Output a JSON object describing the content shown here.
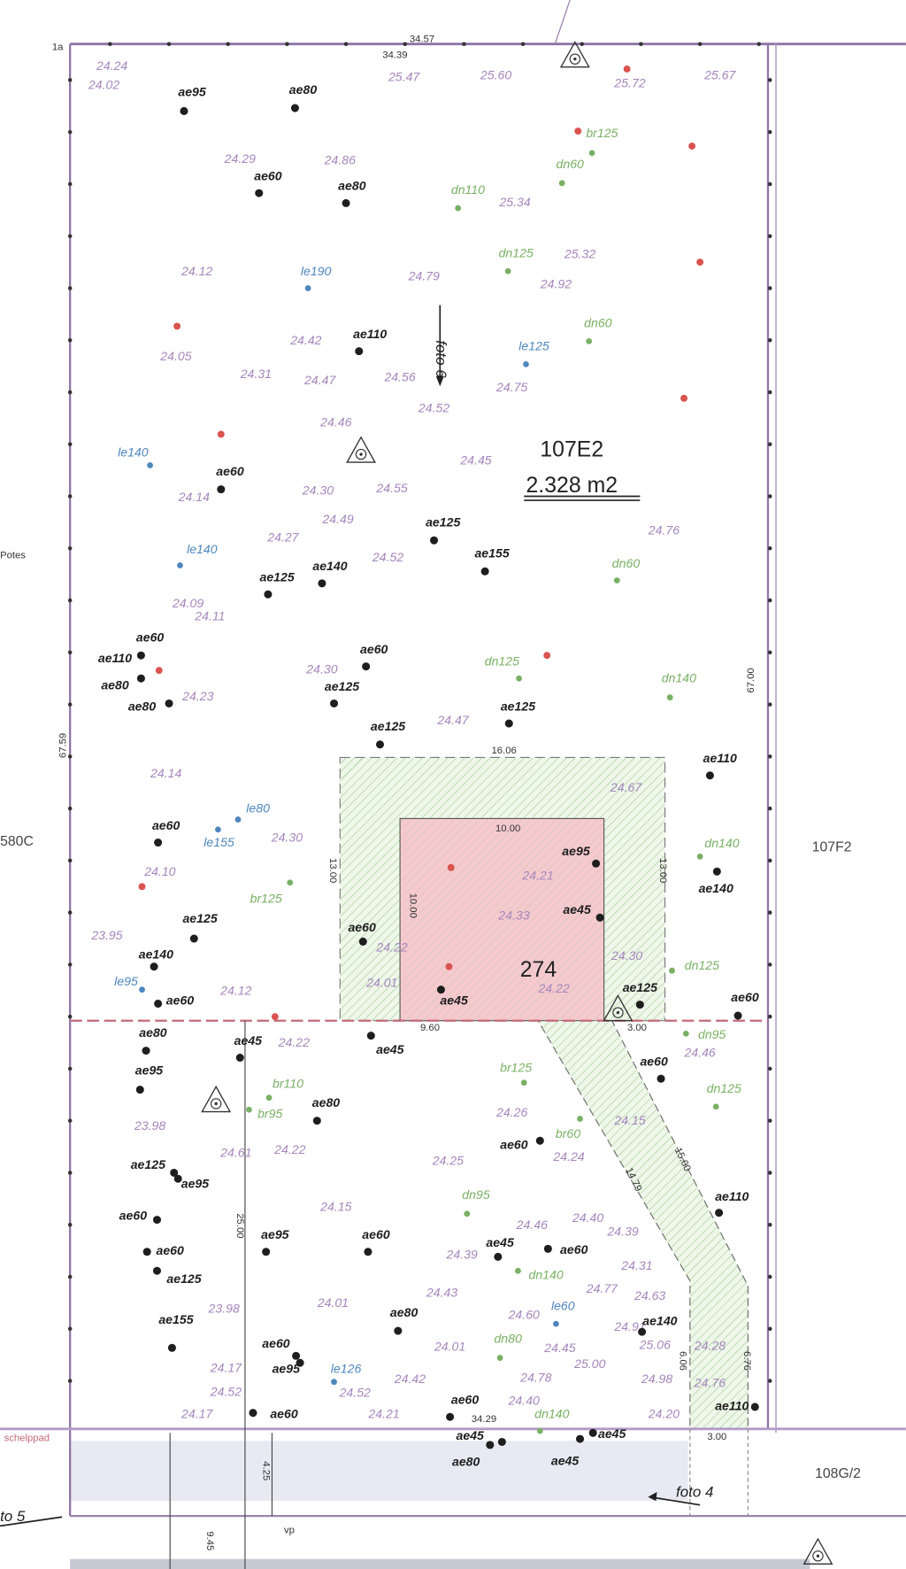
{
  "parcel": {
    "id": "107E2",
    "area": "2.328 m2",
    "building_number": "274"
  },
  "neighbours": {
    "east": "107F2",
    "west": "580C",
    "south_east": "108G/2",
    "west_note": "Potes"
  },
  "road_label": "schelppad",
  "photo_labels": {
    "foto6": "foto 6",
    "foto4": "foto 4",
    "foto5": "to 5"
  },
  "corner_label": "1a",
  "vp_label": "vp",
  "dimensions": [
    "34.57",
    "34.39",
    "16.06",
    "10.00",
    "13.00",
    "13.00",
    "10.00",
    "9.60",
    "3.00",
    "67.59",
    "67.00",
    "15.00",
    "14.79",
    "25.00",
    "6.06",
    "6.76",
    "3.00",
    "4.25",
    "9.45",
    "34.29"
  ],
  "elevations": [
    "24.24",
    "24.02",
    "25.47",
    "25.60",
    "25.72",
    "25.67",
    "24.29",
    "24.86",
    "25.34",
    "25.32",
    "24.92",
    "24.12",
    "24.79",
    "24.42",
    "24.05",
    "24.31",
    "24.47",
    "24.56",
    "24.75",
    "24.52",
    "24.46",
    "24.45",
    "24.14",
    "24.30",
    "24.55",
    "24.49",
    "24.27",
    "24.52",
    "24.76",
    "24.09",
    "24.11",
    "24.30",
    "24.23",
    "24.47",
    "24.14",
    "24.67",
    "24.30",
    "24.21",
    "24.10",
    "24.33",
    "23.95",
    "24.22",
    "24.01",
    "24.30",
    "24.22",
    "24.12",
    "24.22",
    "24.46",
    "24.26",
    "24.15",
    "23.98",
    "24.61",
    "24.22",
    "24.24",
    "24.25",
    "24.15",
    "24.46",
    "24.40",
    "24.39",
    "24.39",
    "24.31",
    "24.43",
    "24.77",
    "24.63",
    "23.98",
    "24.60",
    "24.01",
    "24.91",
    "24.01",
    "24.45",
    "25.06",
    "24.28",
    "25.00",
    "24.17",
    "24.42",
    "24.78",
    "24.98",
    "24.76",
    "24.52",
    "24.52",
    "24.40",
    "24.17",
    "24.21",
    "24.20"
  ],
  "trees_existing": [
    "ae95",
    "ae80",
    "ae60",
    "ae80",
    "ae110",
    "ae60",
    "ae125",
    "ae155",
    "ae140",
    "ae125",
    "ae60",
    "ae110",
    "ae80",
    "ae80",
    "ae60",
    "ae125",
    "ae125",
    "ae125",
    "ae110",
    "ae60",
    "ae95",
    "ae140",
    "ae45",
    "ae125",
    "ae60",
    "ae140",
    "ae60",
    "ae45",
    "ae125",
    "ae60",
    "ae80",
    "ae45",
    "ae45",
    "ae60",
    "ae95",
    "ae80",
    "ae60",
    "ae125",
    "ae95",
    "ae110",
    "ae60",
    "ae95",
    "ae60",
    "ae45",
    "ae60",
    "ae60",
    "ae125",
    "ae155",
    "ae80",
    "ae140",
    "ae60",
    "ae95",
    "ae60",
    "ae60",
    "ae110",
    "ae45",
    "ae80",
    "ae45",
    "ae45"
  ],
  "trees_green": [
    "br125",
    "dn60",
    "dn110",
    "dn125",
    "dn60",
    "dn60",
    "dn125",
    "dn140",
    "br125",
    "dn140",
    "dn125",
    "dn95",
    "br110",
    "br95",
    "br125",
    "br60",
    "dn125",
    "dn95",
    "dn140",
    "dn80",
    "dn140"
  ],
  "trees_blue": [
    "le190",
    "le125",
    "le140",
    "le140",
    "le80",
    "le155",
    "le95",
    "le60",
    "le126"
  ],
  "colors": {
    "border": "#8e74a6",
    "elevation": "#a586bd",
    "existing_tree": "#1e1e1e",
    "green_tree": "#79b064",
    "blue_tree": "#4f86bd",
    "marker_red": "#d9534f",
    "building_fill": "#f6c9cf",
    "zone_hatch": "#9cc98a"
  }
}
